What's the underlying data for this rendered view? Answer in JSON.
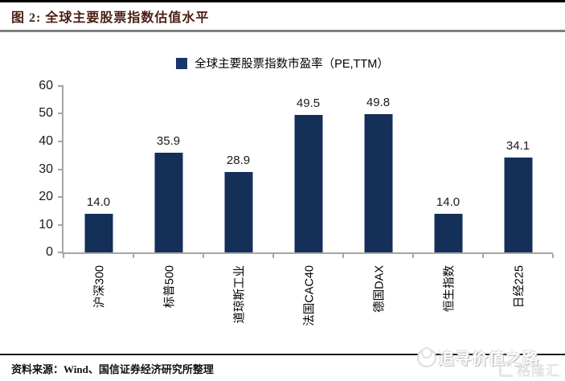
{
  "figure": {
    "caption": "图 2:  全球主要股票指数估值水平",
    "caption_color": "#4a1d12",
    "top_rule_color": "#000000",
    "header_rule_color": "#808080"
  },
  "legend": {
    "label": "全球主要股票指数市盈率（PE,TTM）",
    "swatch_color": "#17356b"
  },
  "chart_data": {
    "type": "bar",
    "title": "全球主要股票指数市盈率（PE,TTM）",
    "categories": [
      "沪深300",
      "标普500",
      "道琼斯工业",
      "法国CAC40",
      "德国DAX",
      "恒生指数",
      "日经225"
    ],
    "values": [
      14.0,
      35.9,
      28.9,
      49.5,
      49.8,
      14.0,
      34.1
    ],
    "value_labels": [
      "14.0",
      "35.9",
      "28.9",
      "49.5",
      "49.8",
      "14.0",
      "34.1"
    ],
    "xlabel": "",
    "ylabel": "",
    "ylim": [
      0,
      60
    ],
    "yticks": [
      0,
      10,
      20,
      30,
      40,
      50,
      60
    ],
    "bar_color": "#143058",
    "axis_color": "#a6a6a6",
    "grid": false,
    "legend_position": "top",
    "x_label_rotation": -90
  },
  "footer": {
    "source": "资料来源：Wind、国信证券经济研究所整理",
    "rule_color": "#1a1a1a"
  },
  "watermark": {
    "text": "追寻价值之路",
    "logo_text": "格隆汇"
  }
}
